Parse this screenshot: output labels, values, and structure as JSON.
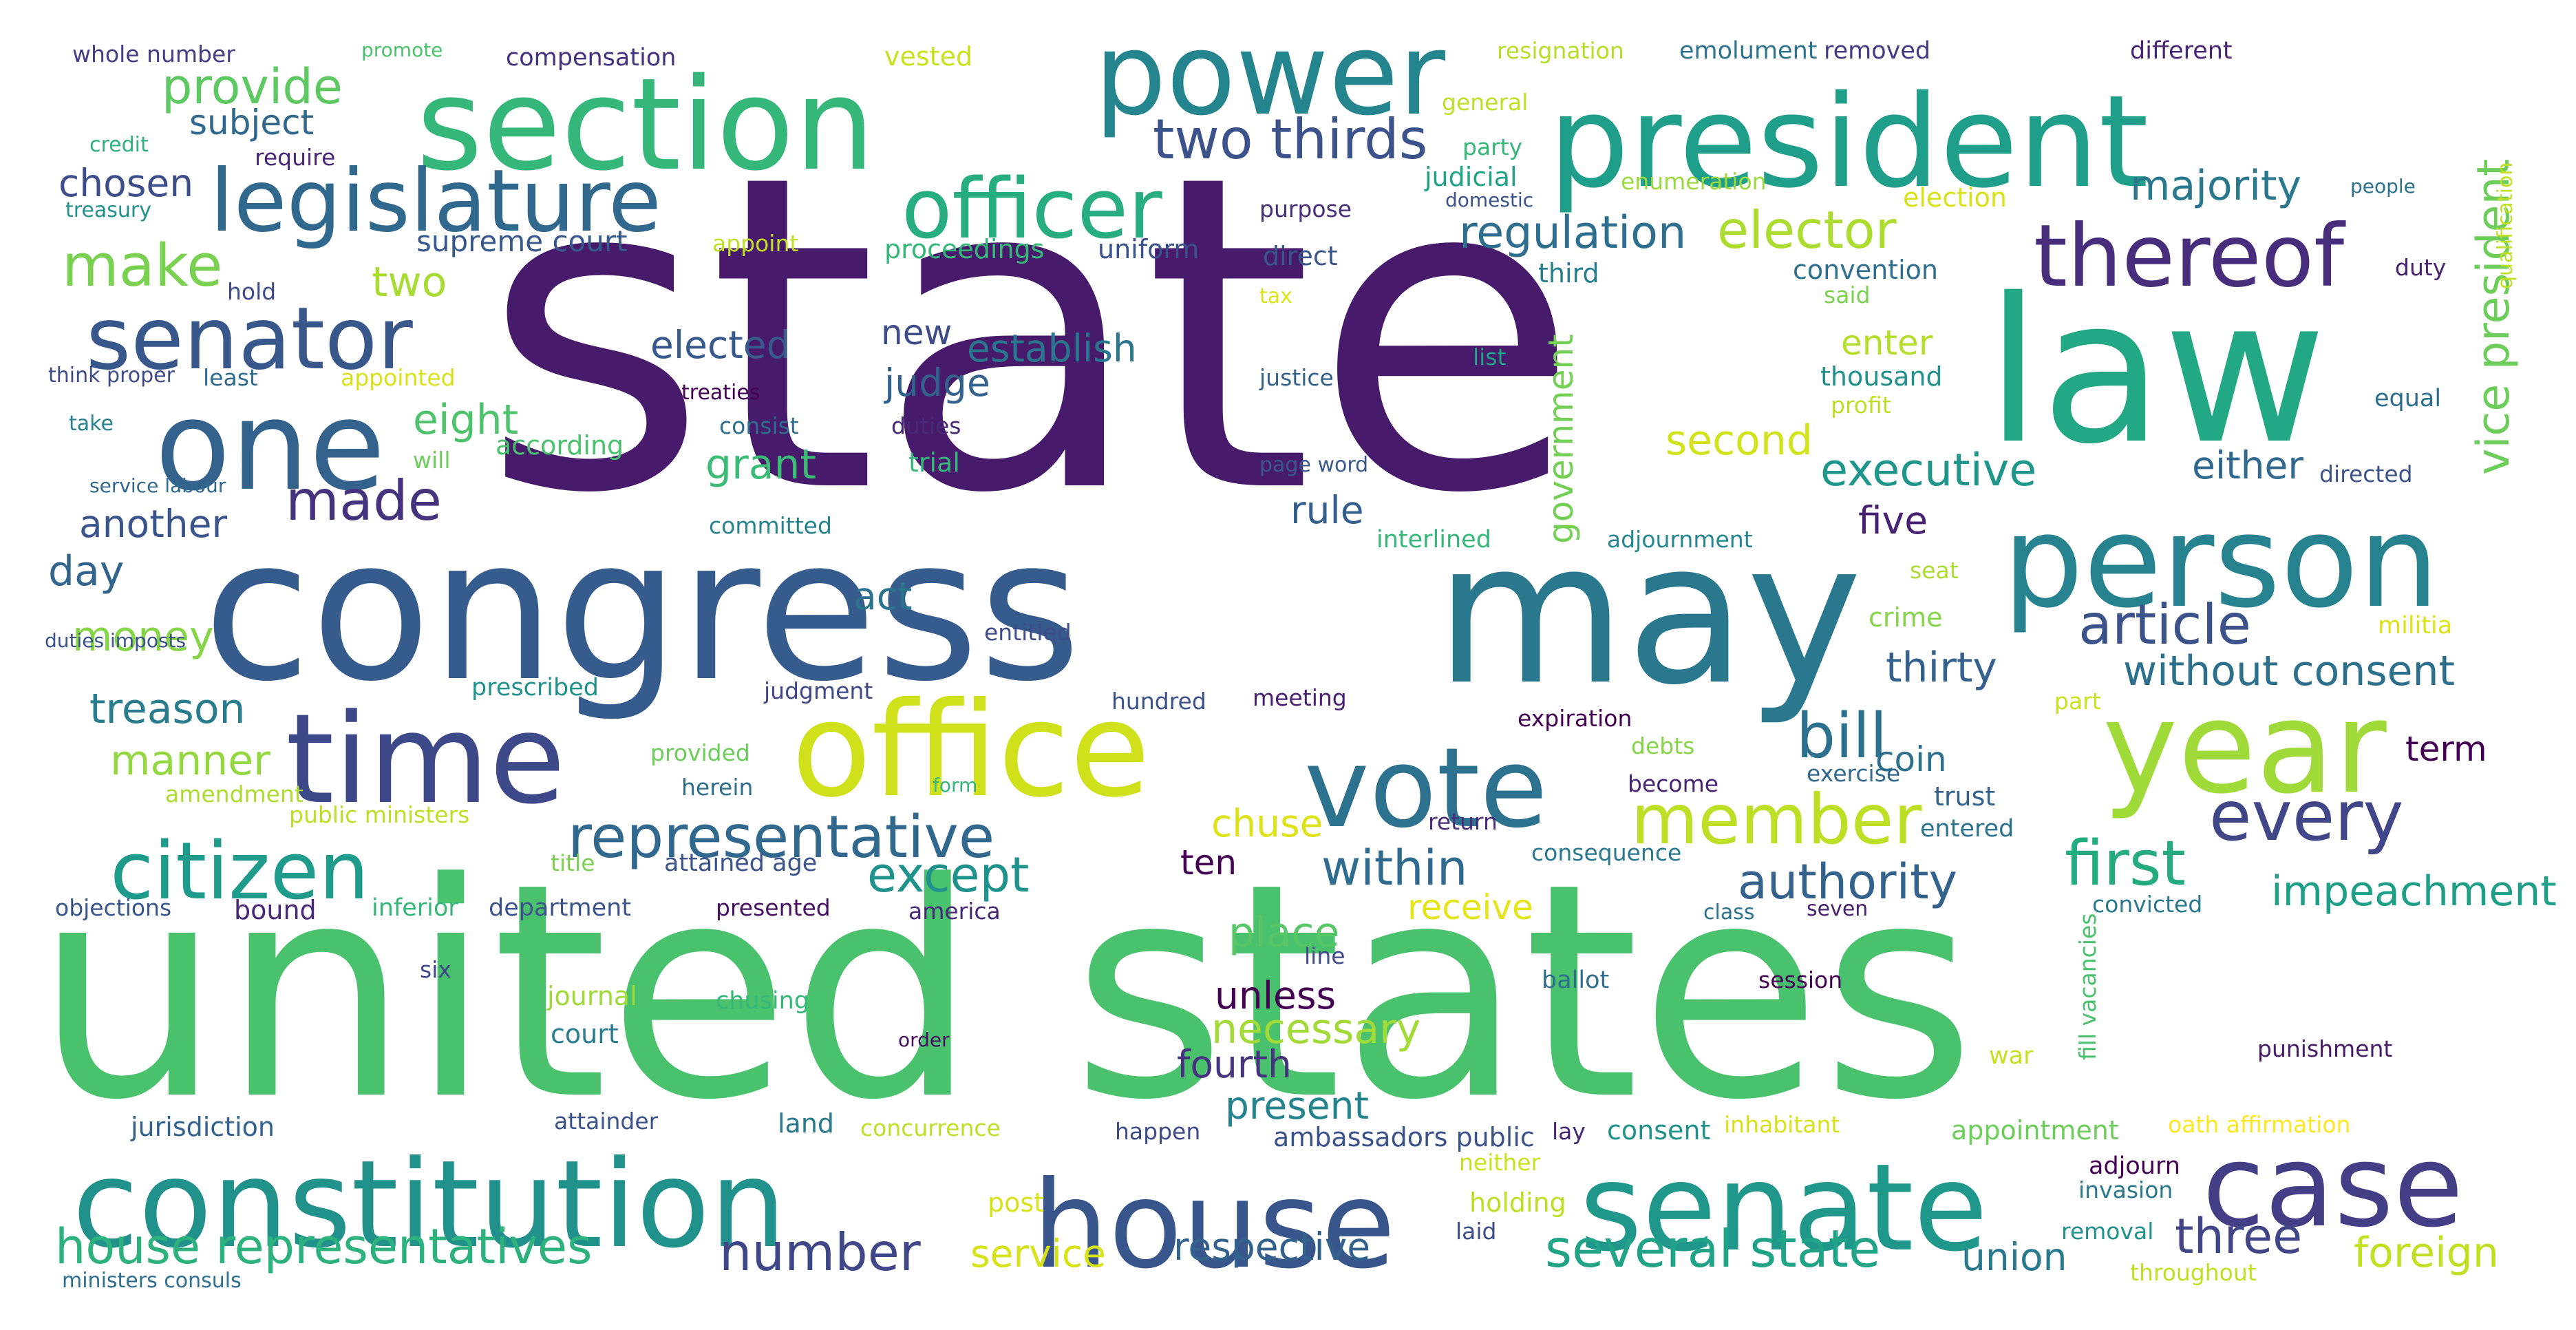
{
  "word_cloud": {
    "words": [
      {
        "text": "state",
        "color": "#481a6c"
      },
      {
        "text": "united states",
        "color": "#4ac16d"
      },
      {
        "text": "congress",
        "color": "#365c8d"
      },
      {
        "text": "may",
        "color": "#2a788e"
      },
      {
        "text": "law",
        "color": "#22a884"
      },
      {
        "text": "president",
        "color": "#1f9e89"
      },
      {
        "text": "section",
        "color": "#35b779"
      },
      {
        "text": "power",
        "color": "#25858e"
      },
      {
        "text": "office",
        "color": "#d0e11c"
      },
      {
        "text": "time",
        "color": "#3e4989"
      },
      {
        "text": "person",
        "color": "#26828e"
      },
      {
        "text": "year",
        "color": "#a0da39"
      },
      {
        "text": "one",
        "color": "#33638d"
      },
      {
        "text": "constitution",
        "color": "#21918c"
      },
      {
        "text": "house",
        "color": "#39568c"
      },
      {
        "text": "senate",
        "color": "#1f988b"
      },
      {
        "text": "case",
        "color": "#433e85"
      },
      {
        "text": "vote",
        "color": "#2c728e"
      },
      {
        "text": "legislature",
        "color": "#31688e"
      },
      {
        "text": "officer",
        "color": "#27ad81"
      },
      {
        "text": "thereof",
        "color": "#472d7b"
      },
      {
        "text": "senator",
        "color": "#38588c"
      },
      {
        "text": "citizen",
        "color": "#1e9b8a"
      },
      {
        "text": "member",
        "color": "#bddf26"
      },
      {
        "text": "every",
        "color": "#404688"
      },
      {
        "text": "representative",
        "color": "#31688e"
      },
      {
        "text": "bill",
        "color": "#2d708e"
      },
      {
        "text": "first",
        "color": "#25ab82"
      },
      {
        "text": "article",
        "color": "#3b528b"
      },
      {
        "text": "make",
        "color": "#7ad151"
      },
      {
        "text": "two thirds",
        "color": "#3b528b"
      },
      {
        "text": "made",
        "color": "#46337e"
      },
      {
        "text": "provide",
        "color": "#5ec962"
      },
      {
        "text": "regulation",
        "color": "#2e6e8e"
      },
      {
        "text": "elector",
        "color": "#addc30"
      },
      {
        "text": "majority",
        "color": "#2a788e"
      },
      {
        "text": "vice president",
        "color": "#6ccd5a"
      },
      {
        "text": "executive",
        "color": "#1f968b"
      },
      {
        "text": "authority",
        "color": "#33638d"
      },
      {
        "text": "except",
        "color": "#20928c"
      },
      {
        "text": "within",
        "color": "#2f6b8e"
      },
      {
        "text": "house representatives",
        "color": "#2db27d"
      },
      {
        "text": "number",
        "color": "#3f4788"
      },
      {
        "text": "several state",
        "color": "#20a386"
      },
      {
        "text": "three",
        "color": "#414487"
      },
      {
        "text": "foreign",
        "color": "#c2df23"
      },
      {
        "text": "impeachment",
        "color": "#1f9f88"
      },
      {
        "text": "without consent",
        "color": "#2d708e"
      },
      {
        "text": "thirty",
        "color": "#34618d"
      },
      {
        "text": "treason",
        "color": "#287c8e"
      },
      {
        "text": "manner",
        "color": "#93d741"
      },
      {
        "text": "money",
        "color": "#86d549"
      },
      {
        "text": "another",
        "color": "#3a548c"
      },
      {
        "text": "day",
        "color": "#32658e"
      },
      {
        "text": "chosen",
        "color": "#3d4e8a"
      },
      {
        "text": "subject",
        "color": "#31688e"
      },
      {
        "text": "two",
        "color": "#a8db34"
      },
      {
        "text": "eight",
        "color": "#4ec36b"
      },
      {
        "text": "elected",
        "color": "#38598c"
      },
      {
        "text": "establish",
        "color": "#2a768e"
      },
      {
        "text": "judge",
        "color": "#33638d"
      },
      {
        "text": "new",
        "color": "#3e4c8a"
      },
      {
        "text": "grant",
        "color": "#3bbb75"
      },
      {
        "text": "second",
        "color": "#d2e21b"
      },
      {
        "text": "enter",
        "color": "#b5de2b"
      },
      {
        "text": "either",
        "color": "#31688e"
      },
      {
        "text": "rule",
        "color": "#355f8d"
      },
      {
        "text": "five",
        "color": "#482173"
      },
      {
        "text": "government",
        "color": "#74d055"
      },
      {
        "text": "act",
        "color": "#2c738e"
      },
      {
        "text": "supreme court",
        "color": "#38598c"
      },
      {
        "text": "chuse",
        "color": "#dde318"
      },
      {
        "text": "ten",
        "color": "#440154"
      },
      {
        "text": "place",
        "color": "#56c667"
      },
      {
        "text": "unless",
        "color": "#440154"
      },
      {
        "text": "necessary",
        "color": "#a2da37"
      },
      {
        "text": "fourth",
        "color": "#46337e"
      },
      {
        "text": "present",
        "color": "#25838e"
      },
      {
        "text": "receive",
        "color": "#e5e419"
      },
      {
        "text": "service",
        "color": "#d8e219"
      },
      {
        "text": "respective",
        "color": "#33638d"
      },
      {
        "text": "union",
        "color": "#2a788e"
      },
      {
        "text": "term",
        "color": "#440154"
      },
      {
        "text": "coin",
        "color": "#2e6f8e"
      },
      {
        "text": "purpose",
        "color": "#472c7a"
      },
      {
        "text": "direct",
        "color": "#39558c"
      },
      {
        "text": "proceedings",
        "color": "#35b779"
      },
      {
        "text": "uniform",
        "color": "#3b518b"
      },
      {
        "text": "appoint",
        "color": "#c0df25"
      },
      {
        "text": "whole number",
        "color": "#433e85"
      },
      {
        "text": "promote",
        "color": "#4cc26c"
      },
      {
        "text": "compensation",
        "color": "#46307e"
      },
      {
        "text": "vested",
        "color": "#cae11f"
      },
      {
        "text": "resignation",
        "color": "#b5de2b"
      },
      {
        "text": "emolument",
        "color": "#2c738e"
      },
      {
        "text": "removed",
        "color": "#443a83"
      },
      {
        "text": "different",
        "color": "#482475"
      },
      {
        "text": "general",
        "color": "#bddf26"
      },
      {
        "text": "party",
        "color": "#35b779"
      },
      {
        "text": "judicial",
        "color": "#20a386"
      },
      {
        "text": "domestic",
        "color": "#3b528b"
      },
      {
        "text": "enumeration",
        "color": "#9bd93c"
      },
      {
        "text": "election",
        "color": "#d8e219"
      },
      {
        "text": "people",
        "color": "#2c738e"
      },
      {
        "text": "qualification",
        "color": "#c2df23"
      },
      {
        "text": "credit",
        "color": "#2db27d"
      },
      {
        "text": "require",
        "color": "#482878"
      },
      {
        "text": "treasury",
        "color": "#21918c"
      },
      {
        "text": "hold",
        "color": "#3e4a89"
      },
      {
        "text": "think proper",
        "color": "#3e4a89"
      },
      {
        "text": "least",
        "color": "#2f6b8e"
      },
      {
        "text": "appointed",
        "color": "#d8e219"
      },
      {
        "text": "take",
        "color": "#26828e"
      },
      {
        "text": "will",
        "color": "#6ccd5a"
      },
      {
        "text": "according",
        "color": "#4ac16d"
      },
      {
        "text": "treaties",
        "color": "#440154"
      },
      {
        "text": "consist",
        "color": "#2e6e8e"
      },
      {
        "text": "duties",
        "color": "#482878"
      },
      {
        "text": "trial",
        "color": "#35b779"
      },
      {
        "text": "justice",
        "color": "#33638d"
      },
      {
        "text": "page word",
        "color": "#38598c"
      },
      {
        "text": "tax",
        "color": "#dde318"
      },
      {
        "text": "third",
        "color": "#277f8e"
      },
      {
        "text": "list",
        "color": "#20a386"
      },
      {
        "text": "convention",
        "color": "#2e6e8e"
      },
      {
        "text": "said",
        "color": "#7ad151"
      },
      {
        "text": "thousand",
        "color": "#21918c"
      },
      {
        "text": "profit",
        "color": "#bddf26"
      },
      {
        "text": "duty",
        "color": "#482173"
      },
      {
        "text": "equal",
        "color": "#2e6e8e"
      },
      {
        "text": "directed",
        "color": "#3b528b"
      },
      {
        "text": "service labour",
        "color": "#31688e"
      },
      {
        "text": "committed",
        "color": "#25838e"
      },
      {
        "text": "interlined",
        "color": "#35b779"
      },
      {
        "text": "adjournment",
        "color": "#24868e"
      },
      {
        "text": "seat",
        "color": "#addc30"
      },
      {
        "text": "entitled",
        "color": "#3e4c8a"
      },
      {
        "text": "crime",
        "color": "#86d549"
      },
      {
        "text": "militia",
        "color": "#dde318"
      },
      {
        "text": "duties imposts",
        "color": "#3b518b"
      },
      {
        "text": "prescribed",
        "color": "#20928c"
      },
      {
        "text": "judgment",
        "color": "#3f4788"
      },
      {
        "text": "hundred",
        "color": "#3b528b"
      },
      {
        "text": "meeting",
        "color": "#481f70"
      },
      {
        "text": "part",
        "color": "#cae11f"
      },
      {
        "text": "expiration",
        "color": "#440154"
      },
      {
        "text": "debts",
        "color": "#86d549"
      },
      {
        "text": "provided",
        "color": "#6ccd5a"
      },
      {
        "text": "herein",
        "color": "#2e6e8e"
      },
      {
        "text": "form",
        "color": "#35b779"
      },
      {
        "text": "become",
        "color": "#482475"
      },
      {
        "text": "exercise",
        "color": "#31688e"
      },
      {
        "text": "trust",
        "color": "#33638d"
      },
      {
        "text": "entered",
        "color": "#2c728e"
      },
      {
        "text": "amendment",
        "color": "#addc30"
      },
      {
        "text": "public ministers",
        "color": "#bddf26"
      },
      {
        "text": "return",
        "color": "#472d7b"
      },
      {
        "text": "consequence",
        "color": "#2a788e"
      },
      {
        "text": "title",
        "color": "#7ad151"
      },
      {
        "text": "attained age",
        "color": "#3b528b"
      },
      {
        "text": "objections",
        "color": "#39568c"
      },
      {
        "text": "bound",
        "color": "#482878"
      },
      {
        "text": "inferior",
        "color": "#35b779"
      },
      {
        "text": "department",
        "color": "#3b528b"
      },
      {
        "text": "presented",
        "color": "#471063"
      },
      {
        "text": "america",
        "color": "#482878"
      },
      {
        "text": "class",
        "color": "#2c728e"
      },
      {
        "text": "seven",
        "color": "#481f70"
      },
      {
        "text": "convicted",
        "color": "#2a788e"
      },
      {
        "text": "six",
        "color": "#3f4788"
      },
      {
        "text": "line",
        "color": "#3e4a89"
      },
      {
        "text": "journal",
        "color": "#a0da39"
      },
      {
        "text": "chusing",
        "color": "#35b779"
      },
      {
        "text": "ballot",
        "color": "#2e6e8e"
      },
      {
        "text": "session",
        "color": "#440154"
      },
      {
        "text": "court",
        "color": "#287c8e"
      },
      {
        "text": "order",
        "color": "#471063"
      },
      {
        "text": "war",
        "color": "#c8e020"
      },
      {
        "text": "fill vacancies",
        "color": "#4ac16d"
      },
      {
        "text": "punishment",
        "color": "#481a6c"
      },
      {
        "text": "jurisdiction",
        "color": "#33638d"
      },
      {
        "text": "attainder",
        "color": "#3b528b"
      },
      {
        "text": "land",
        "color": "#2a788e"
      },
      {
        "text": "concurrence",
        "color": "#bddf26"
      },
      {
        "text": "happen",
        "color": "#3e4a89"
      },
      {
        "text": "ambassadors public",
        "color": "#3b528b"
      },
      {
        "text": "lay",
        "color": "#482475"
      },
      {
        "text": "consent",
        "color": "#21918c"
      },
      {
        "text": "inhabitant",
        "color": "#d8e219"
      },
      {
        "text": "appointment",
        "color": "#6ccd5a"
      },
      {
        "text": "oath affirmation",
        "color": "#fde725"
      },
      {
        "text": "adjourn",
        "color": "#440154"
      },
      {
        "text": "invasion",
        "color": "#2a788e"
      },
      {
        "text": "post",
        "color": "#d8e219"
      },
      {
        "text": "neither",
        "color": "#cae11f"
      },
      {
        "text": "holding",
        "color": "#bddf26"
      },
      {
        "text": "laid",
        "color": "#3e4c8a"
      },
      {
        "text": "removal",
        "color": "#21918c"
      },
      {
        "text": "ministers consuls",
        "color": "#2e6e8e"
      },
      {
        "text": "throughout",
        "color": "#c2df23"
      }
    ]
  }
}
